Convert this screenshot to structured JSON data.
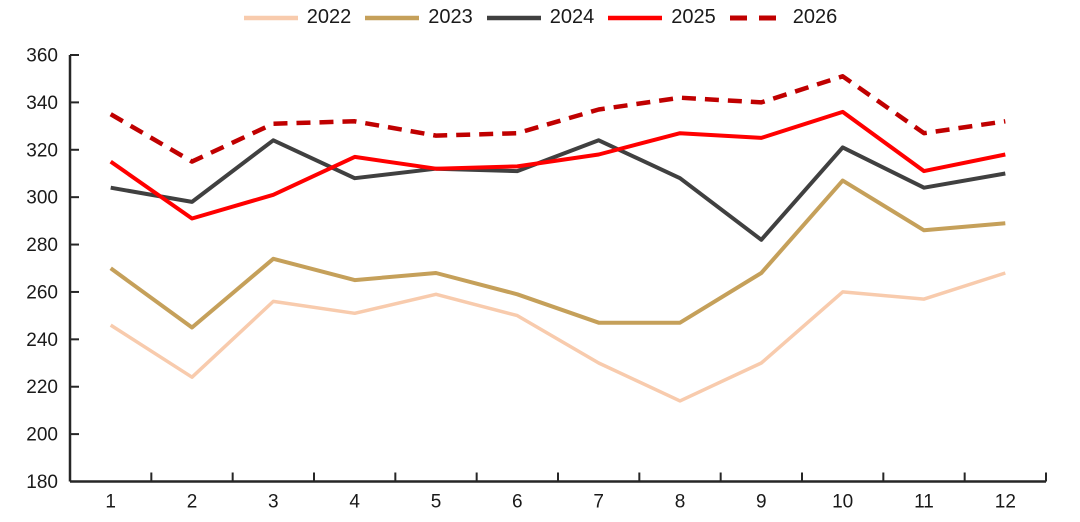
{
  "chart_data": {
    "type": "line",
    "title": "",
    "xlabel": "",
    "ylabel": "",
    "x_categories": [
      "1",
      "2",
      "3",
      "4",
      "5",
      "6",
      "7",
      "8",
      "9",
      "10",
      "11",
      "12"
    ],
    "ylim": [
      180,
      360
    ],
    "ytick_step": 20,
    "ytick_labels": [
      "180",
      "200",
      "220",
      "240",
      "260",
      "280",
      "300",
      "320",
      "340",
      "360"
    ],
    "grid": false,
    "legend_position": "top-center",
    "axis_color": "#262626",
    "label_color": "#1a1a1a",
    "series": [
      {
        "name": "2022",
        "color": "#F8CBAD",
        "dash": "solid",
        "values": [
          246,
          224,
          256,
          251,
          259,
          250,
          230,
          214,
          230,
          260,
          257,
          268
        ]
      },
      {
        "name": "2023",
        "color": "#C5A05A",
        "dash": "solid",
        "values": [
          270,
          245,
          274,
          265,
          268,
          259,
          247,
          247,
          268,
          307,
          286,
          289
        ]
      },
      {
        "name": "2024",
        "color": "#404040",
        "dash": "solid",
        "values": [
          304,
          298,
          324,
          308,
          312,
          311,
          324,
          308,
          282,
          321,
          304,
          310
        ]
      },
      {
        "name": "2025",
        "color": "#FF0000",
        "dash": "solid",
        "values": [
          315,
          291,
          301,
          317,
          312,
          313,
          318,
          327,
          325,
          336,
          311,
          318
        ]
      },
      {
        "name": "2026",
        "color": "#C00000",
        "dash": "dashed",
        "values": [
          335,
          315,
          331,
          332,
          326,
          327,
          337,
          342,
          340,
          351,
          327,
          332
        ]
      }
    ]
  }
}
